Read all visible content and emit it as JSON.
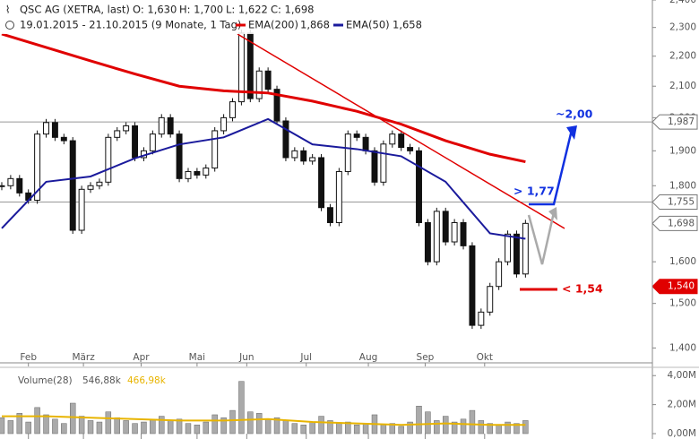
{
  "chart_data": {
    "type": "candlestick",
    "title": "QSC AG (XETRA, last)",
    "ohlc_text": [
      "O: 1,630",
      "H: 1,700",
      "L: 1,622",
      "C: 1,698"
    ],
    "subtitle": "19.01.2015 - 21.10.2015 (9 Monate, 1 Tag)",
    "close": [
      1800,
      1820,
      1780,
      1760,
      1950,
      1985,
      1940,
      1930,
      1680,
      1790,
      1800,
      1810,
      1940,
      1960,
      1975,
      1880,
      1900,
      1950,
      2000,
      1950,
      1820,
      1840,
      1830,
      1850,
      1960,
      2000,
      2050,
      2280,
      2060,
      2150,
      2090,
      1990,
      1880,
      1900,
      1870,
      1880,
      1740,
      1700,
      1840,
      1950,
      1940,
      1900,
      1810,
      1920,
      1950,
      1910,
      1900,
      1700,
      1600,
      1730,
      1650,
      1700,
      1640,
      1450,
      1480,
      1540,
      1600,
      1670,
      1570,
      1698
    ],
    "xlim": [
      -0.2,
      73.3
    ],
    "xticks": [
      {
        "value": 3,
        "label": "Feb"
      },
      {
        "value": 9.2,
        "label": "März"
      },
      {
        "value": 15.7,
        "label": "Apr"
      },
      {
        "value": 22,
        "label": "Mai"
      },
      {
        "value": 27.6,
        "label": "Jun"
      },
      {
        "value": 34.3,
        "label": "Jul"
      },
      {
        "value": 41.3,
        "label": "Aug"
      },
      {
        "value": 47.7,
        "label": "Sep"
      },
      {
        "value": 54.4,
        "label": "Okt"
      }
    ],
    "ylim": [
      1370,
      2400
    ],
    "log_scale": true,
    "yticks": [
      {
        "value": 1400,
        "label": "1,400"
      },
      {
        "value": 1500,
        "label": "1,500"
      },
      {
        "value": 1600,
        "label": "1,600"
      },
      {
        "value": 1700,
        "label": "1,700"
      },
      {
        "value": 1800,
        "label": "1,800"
      },
      {
        "value": 1900,
        "label": "1,900"
      },
      {
        "value": 2000,
        "label": "2,000"
      },
      {
        "value": 2100,
        "label": "2,100"
      },
      {
        "value": 2200,
        "label": "2,200"
      },
      {
        "value": 2300,
        "label": "2,300"
      },
      {
        "value": 2400,
        "label": "2,400"
      }
    ],
    "series": [
      {
        "name": "EMA(200)",
        "value_label": "1,868",
        "color": "#e00000",
        "x": [
          0,
          5,
          10,
          15,
          20,
          25,
          30,
          35,
          40,
          45,
          50,
          55,
          59
        ],
        "values": [
          2277,
          2230,
          2184,
          2140,
          2100,
          2085,
          2078,
          2052,
          2020,
          1980,
          1930,
          1890,
          1868
        ]
      },
      {
        "name": "EMA(50)",
        "value_label": "1,658",
        "color": "#1a1a9c",
        "x": [
          0,
          5,
          10,
          15,
          20,
          25,
          30,
          35,
          40,
          45,
          50,
          55,
          59
        ],
        "values": [
          1685,
          1811,
          1826,
          1878,
          1919,
          1940,
          1996,
          1919,
          1905,
          1884,
          1811,
          1672,
          1658
        ]
      }
    ],
    "levels": {
      "values": [
        1987,
        1755,
        1698,
        1540
      ],
      "value_labels": [
        "1,987",
        "1,755",
        "1,698",
        "1,540"
      ],
      "line": [
        true,
        true,
        false,
        false
      ],
      "colors": [
        "#ffffff",
        "#ffffff",
        "#ffffff",
        "#e00000"
      ]
    },
    "annotations": [
      "~2,00",
      "> 1,77",
      "< 1,54"
    ],
    "volume": {
      "name": "Volume(28)",
      "labels": [
        "546,88k",
        "466,98k"
      ],
      "values": [
        1.1,
        0.9,
        1.4,
        0.8,
        1.8,
        1.3,
        1.0,
        0.7,
        2.1,
        1.2,
        0.9,
        0.8,
        1.5,
        1.1,
        0.9,
        0.7,
        0.8,
        1.0,
        1.2,
        0.9,
        1.0,
        0.7,
        0.6,
        0.8,
        1.3,
        1.1,
        1.6,
        3.6,
        1.5,
        1.4,
        1.0,
        1.1,
        0.9,
        0.7,
        0.6,
        0.8,
        1.2,
        0.9,
        0.7,
        0.8,
        0.6,
        0.7,
        1.3,
        0.6,
        0.7,
        0.5,
        0.8,
        1.9,
        1.5,
        0.9,
        1.2,
        0.8,
        1.0,
        1.6,
        0.9,
        0.7,
        0.6,
        0.8,
        0.7,
        0.9
      ],
      "avg_x": [
        0,
        5,
        10,
        15,
        20,
        25,
        30,
        35,
        40,
        45,
        50,
        55,
        59
      ],
      "avg": [
        1.2,
        1.2,
        1.1,
        1.0,
        0.9,
        0.9,
        1.0,
        0.8,
        0.7,
        0.6,
        0.7,
        0.6,
        0.6
      ],
      "avg_color": "#e8b400",
      "ylim": [
        0,
        4.2
      ],
      "yticks": [
        {
          "value": 4,
          "label": "4,00M"
        },
        {
          "value": 2,
          "label": "2,00M"
        },
        {
          "value": 0,
          "label": "0,00M"
        }
      ]
    }
  }
}
